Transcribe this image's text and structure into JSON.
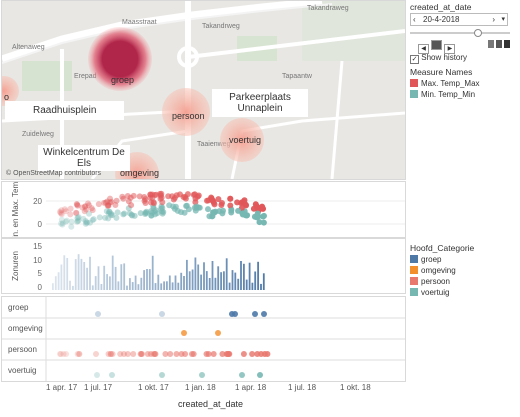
{
  "map": {
    "labels": {
      "raadhuisplein": "Raadhuisplein",
      "parkeerplaats": "Parkeerplaats Unnaplein",
      "winkelcentrum": "Winkelcentrum De Els",
      "partial_left": "o",
      "street_1": "Altenaweg",
      "street_2": "Takandrweg",
      "street_3": "Takandraweg",
      "street_4": "Maasstraat",
      "street_5": "Tapaantw",
      "street_6": "Erepad",
      "street_7": "Taaienweg",
      "street_8": "Zuidelweg"
    },
    "bubbles": {
      "groep": "groep",
      "persoon": "persoon",
      "voertuig": "voertuig",
      "omgeving": "omgeving"
    },
    "copyright": "© OpenStreetMap contributors"
  },
  "temp_chart": {
    "ylabel": "Min. en Max. Temp.",
    "ticks": [
      "20",
      "0"
    ]
  },
  "zon_chart": {
    "ylabel": "Zonuren",
    "ticks": [
      "15",
      "10",
      "5",
      "0"
    ]
  },
  "categories": {
    "rows": [
      "groep",
      "omgeving",
      "persoon",
      "voertuig"
    ]
  },
  "x_axis": {
    "ticks": [
      "1 apr. 17",
      "1 jul. 17",
      "1 okt. 17",
      "1 jan. 18",
      "1 apr. 18",
      "1 jul. 18",
      "1 okt. 18"
    ],
    "title": "created_at_date"
  },
  "filter": {
    "title": "created_at_date",
    "value": "20-4-2018",
    "show_history_label": "Show history",
    "show_history_checked": true
  },
  "measure_legend": {
    "title": "Measure Names",
    "items": [
      {
        "label": "Max. Temp_Max",
        "color": "#e15759"
      },
      {
        "label": "Min. Temp_Min",
        "color": "#76b7b2"
      }
    ]
  },
  "category_legend": {
    "title": "Hoofd_Categorie",
    "items": [
      {
        "label": "groep",
        "color": "#4e79a7"
      },
      {
        "label": "omgeving",
        "color": "#f28e2b"
      },
      {
        "label": "persoon",
        "color": "#e8786e"
      },
      {
        "label": "voertuig",
        "color": "#76b7b2"
      }
    ]
  },
  "colors": {
    "max": "#e15759",
    "min": "#76b7b2",
    "bar": "#4e79a7",
    "groep_bubble": "#b0254a",
    "persoon_bubble": "#f4a294"
  }
}
